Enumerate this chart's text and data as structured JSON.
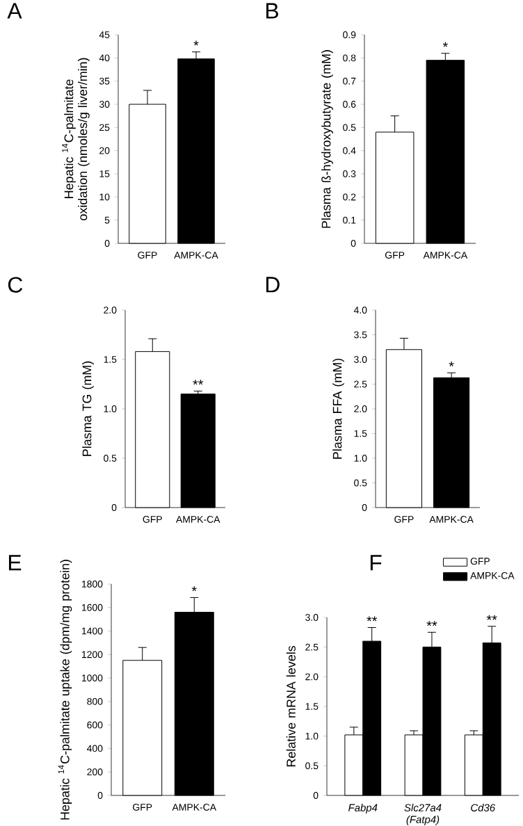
{
  "chart_data": [
    {
      "type": "bar",
      "title": "A",
      "ylabel": "Hepatic $^{14}$C-palmitate oxidation (nmoles/g liver/min)",
      "categories": [
        "GFP",
        "AMPK-CA"
      ],
      "values": [
        30,
        39.8
      ],
      "errors": [
        3,
        1.5
      ],
      "colors": [
        "#ffffff",
        "#000000"
      ],
      "ylim": [
        0,
        45
      ],
      "yticks": [
        0,
        5,
        10,
        15,
        20,
        25,
        30,
        35,
        40,
        45
      ],
      "annotations": [
        {
          "text": "*",
          "x": "AMPK-CA",
          "y": 41.3
        }
      ]
    },
    {
      "type": "bar",
      "title": "B",
      "ylabel": "Plasma ß-hydroxybutyrate (mM)",
      "categories": [
        "GFP",
        "AMPK-CA"
      ],
      "values": [
        0.48,
        0.79
      ],
      "errors": [
        0.07,
        0.03
      ],
      "colors": [
        "#ffffff",
        "#000000"
      ],
      "ylim": [
        0,
        0.9
      ],
      "yticks": [
        0,
        0.1,
        0.2,
        0.3,
        0.4,
        0.5,
        0.6,
        0.7,
        0.8,
        0.9
      ],
      "annotations": [
        {
          "text": "*",
          "x": "AMPK-CA",
          "y": 0.82
        }
      ]
    },
    {
      "type": "bar",
      "title": "C",
      "ylabel": "Plasma TG (mM)",
      "categories": [
        "GFP",
        "AMPK-CA"
      ],
      "values": [
        1.58,
        1.15
      ],
      "errors": [
        0.13,
        0.03
      ],
      "colors": [
        "#ffffff",
        "#000000"
      ],
      "ylim": [
        0,
        2
      ],
      "yticks": [
        0,
        0.5,
        {
          "value": 1,
          "label": "1.0"
        },
        1.5,
        {
          "value": 2,
          "label": "2.0"
        }
      ],
      "annotations": [
        {
          "text": "**",
          "x": "AMPK-CA",
          "y": 1.18
        }
      ]
    },
    {
      "type": "bar",
      "title": "D",
      "ylabel": "Plasma FFA (mM)",
      "categories": [
        "GFP",
        "AMPK-CA"
      ],
      "values": [
        3.2,
        2.63
      ],
      "errors": [
        0.23,
        0.1
      ],
      "colors": [
        "#ffffff",
        "#000000"
      ],
      "ylim": [
        0,
        4
      ],
      "yticks": [
        0,
        0.5,
        {
          "value": 1,
          "label": "1.0"
        },
        1.5,
        {
          "value": 2,
          "label": "2.0"
        },
        2.5,
        {
          "value": 3,
          "label": "3.0"
        },
        3.5,
        {
          "value": 4,
          "label": "4.0"
        }
      ],
      "annotations": [
        {
          "text": "*",
          "x": "AMPK-CA",
          "y": 2.73
        }
      ]
    },
    {
      "type": "bar",
      "title": "E",
      "ylabel": "Hepatic $^{14}$C-palmitate uptake (dpm/mg protein)",
      "categories": [
        "GFP",
        "AMPK-CA"
      ],
      "values": [
        1150,
        1560
      ],
      "errors": [
        110,
        125
      ],
      "colors": [
        "#ffffff",
        "#000000"
      ],
      "ylim": [
        0,
        1800
      ],
      "yticks": [
        0,
        200,
        400,
        600,
        800,
        1000,
        1200,
        1400,
        1600,
        1800
      ],
      "annotations": [
        {
          "text": "*",
          "x": "AMPK-CA",
          "y": 1685
        }
      ]
    },
    {
      "type": "bar",
      "title": "F",
      "ylabel": "Relative mRNA levels",
      "categories": [
        "Fabp4",
        "Slc27a4 (Fatp4)",
        "Cd36"
      ],
      "series": [
        {
          "name": "GFP",
          "color": "#ffffff",
          "values": [
            1.02,
            1.02,
            1.02
          ],
          "errors": [
            0.13,
            0.07,
            0.07
          ]
        },
        {
          "name": "AMPK-CA",
          "color": "#000000",
          "values": [
            2.6,
            2.5,
            2.57
          ],
          "errors": [
            0.23,
            0.25,
            0.28
          ]
        }
      ],
      "legend": "top right",
      "ylim": [
        0,
        3
      ],
      "yticks": [
        0,
        0.5,
        {
          "value": 1,
          "label": "1.0"
        },
        1.5,
        {
          "value": 2,
          "label": "2.0"
        },
        2.5,
        {
          "value": 3,
          "label": "3.0"
        }
      ],
      "annotations": [
        {
          "text": "**",
          "x": "Fabp4",
          "y": 2.83
        },
        {
          "text": "**",
          "x": "Slc27a4 (Fatp4)",
          "y": 2.75
        },
        {
          "text": "**",
          "x": "Cd36",
          "y": 2.85
        }
      ]
    }
  ]
}
